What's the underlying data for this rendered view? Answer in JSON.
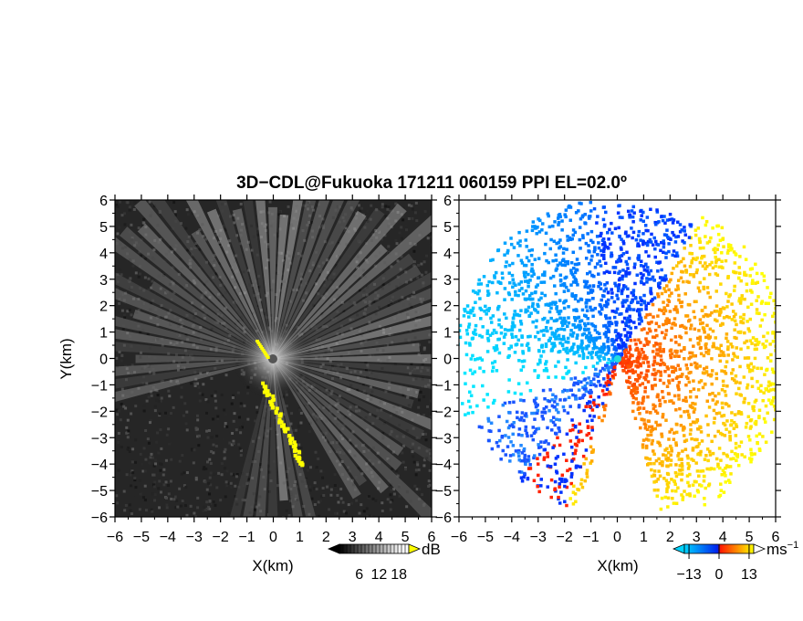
{
  "title": "3D−CDL@Fukuoka 171211 060159 PPI EL=02.0º",
  "chart_data": [
    {
      "type": "heatmap",
      "panel": "backscatter (left)",
      "xlabel": "X(km)",
      "ylabel": "Y(km)",
      "xlim": [
        -6,
        6
      ],
      "ylim": [
        -6,
        6
      ],
      "x_ticks": [
        -6,
        -5,
        -4,
        -3,
        -2,
        -1,
        0,
        1,
        2,
        3,
        4,
        5,
        6
      ],
      "y_ticks": [
        -6,
        -5,
        -4,
        -3,
        -2,
        -1,
        0,
        1,
        2,
        3,
        4,
        5,
        6
      ],
      "x_tick_labels": [
        "−6",
        "−5",
        "−4",
        "−3",
        "−2",
        "−1",
        "0",
        "1",
        "2",
        "3",
        "4",
        "5",
        "6"
      ],
      "y_tick_labels": [
        "−6",
        "−5",
        "−4",
        "−3",
        "−2",
        "−1",
        "0",
        "1",
        "2",
        "3",
        "4",
        "5",
        "6"
      ],
      "colorbar": {
        "unit": "dB",
        "ticks": [
          6,
          12,
          18
        ],
        "tick_labels": [
          "6",
          "12",
          "18"
        ],
        "colors": [
          "#000000",
          "#ffffff",
          "#ffff00"
        ]
      },
      "highlight_color": "#ffff00"
    },
    {
      "type": "heatmap",
      "panel": "radial velocity (right)",
      "xlabel": "X(km)",
      "xlim": [
        -6,
        6
      ],
      "ylim": [
        -6,
        6
      ],
      "x_ticks": [
        -6,
        -5,
        -4,
        -3,
        -2,
        -1,
        0,
        1,
        2,
        3,
        4,
        5,
        6
      ],
      "x_tick_labels": [
        "−6",
        "−5",
        "−4",
        "−3",
        "−2",
        "−1",
        "0",
        "1",
        "2",
        "3",
        "4",
        "5",
        "6"
      ],
      "y_tick_labels": [
        "−6",
        "−5",
        "−4",
        "−3",
        "−2",
        "−1",
        "0",
        "1",
        "2",
        "3",
        "4",
        "5",
        "6"
      ],
      "colorbar": {
        "unit": "ms",
        "unit_exponent": "−1",
        "ticks": [
          -13,
          0,
          13
        ],
        "tick_labels": [
          "−13",
          "0",
          "13"
        ],
        "colors": [
          "#00ccff",
          "#0033ff",
          "#ff2200",
          "#ffff00"
        ]
      }
    }
  ]
}
